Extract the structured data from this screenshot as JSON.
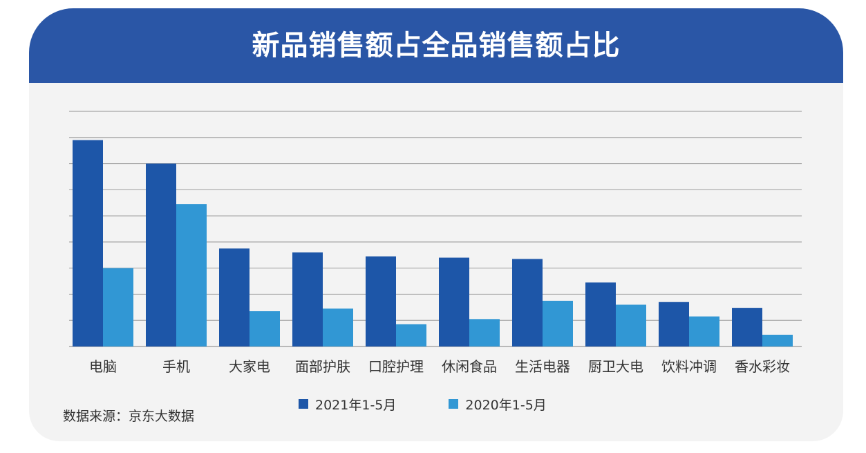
{
  "title": "新品销售额占全品销售额占比",
  "source": "数据来源：京东大数据",
  "colors": {
    "banner": "#2a56a6",
    "series_2021": "#1d56a8",
    "series_2020": "#3197d4",
    "card_background": "#f3f3f3",
    "gridline": "#a6a6a6"
  },
  "legend": [
    {
      "label": "2021年1-5月",
      "color": "#1d56a8"
    },
    {
      "label": "2020年1-5月",
      "color": "#3197d4"
    }
  ],
  "chart_data": {
    "type": "bar",
    "title": "新品销售额占全品销售额占比",
    "xlabel": "",
    "ylabel": "",
    "y_tick_labels_shown": false,
    "grid": true,
    "ylim": [
      0,
      9
    ],
    "legend_position": "bottom",
    "categories": [
      "电脑",
      "手机",
      "大家电",
      "面部护肤",
      "口腔护理",
      "休闲食品",
      "生活电器",
      "厨卫大电",
      "饮料冲调",
      "香水彩妆"
    ],
    "series": [
      {
        "name": "2021年1-5月",
        "color": "#1d56a8",
        "values": [
          7.9,
          7.0,
          3.75,
          3.6,
          3.45,
          3.4,
          3.35,
          2.45,
          1.7,
          1.48
        ]
      },
      {
        "name": "2020年1-5月",
        "color": "#3197d4",
        "values": [
          3.0,
          5.45,
          1.35,
          1.45,
          0.85,
          1.05,
          1.75,
          1.6,
          1.15,
          0.45
        ]
      }
    ]
  }
}
